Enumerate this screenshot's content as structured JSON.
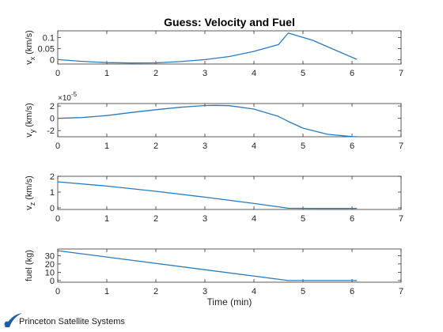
{
  "footer": {
    "brand": "Princeton Satellite Systems"
  },
  "colors": {
    "line": "#2b7bba",
    "axis": "#333333",
    "grid": "#e6e6e6",
    "logo": "#1f5fa0"
  },
  "chart_data": {
    "type": "line",
    "title": "Guess: Velocity and Fuel",
    "xlabel": "Time (min)",
    "xlim": [
      0,
      7
    ],
    "xticks": [
      0,
      1,
      2,
      3,
      4,
      5,
      6,
      7
    ],
    "subplots": [
      {
        "ylabel": "v_x (km/s)",
        "ylabel_main": "v",
        "ylabel_sub": "x",
        "ylabel_tail": " (km/s)",
        "ylim": [
          -0.02,
          0.13
        ],
        "yticks": [
          0,
          0.05,
          0.1
        ],
        "ytick_labels": [
          "0",
          "0.05",
          "0.1"
        ],
        "series": [
          {
            "x": [
              0,
              0.5,
              1,
              1.5,
              2,
              2.5,
              3,
              3.5,
              4,
              4.5,
              4.7,
              5.2,
              5.7,
              6.1
            ],
            "y": [
              0,
              -0.008,
              -0.0135,
              -0.0155,
              -0.0145,
              -0.009,
              0.0,
              0.014,
              0.037,
              0.068,
              0.12,
              0.087,
              0.039,
              0.001
            ]
          }
        ]
      },
      {
        "ylabel": "v_y (km/s)",
        "ylabel_main": "v",
        "ylabel_sub": "y",
        "ylabel_tail": " (km/s)",
        "exponent_label": "×10",
        "exponent_power": "-5",
        "ylim": [
          -3,
          2.4
        ],
        "yticks": [
          -2,
          0,
          2
        ],
        "ytick_labels": [
          "-2",
          "0",
          "2"
        ],
        "series": [
          {
            "x": [
              0,
              0.5,
              1,
              1.5,
              2,
              2.5,
              3,
              3.2,
              3.5,
              4,
              4.5,
              4.7,
              5,
              5.5,
              6,
              6.1
            ],
            "y": [
              0,
              0.12,
              0.45,
              0.95,
              1.4,
              1.8,
              2.08,
              2.1,
              2.05,
              1.5,
              0.3,
              -0.5,
              -1.6,
              -2.6,
              -2.98,
              -3.0
            ]
          }
        ]
      },
      {
        "ylabel": "v_z (km/s)",
        "ylabel_main": "v",
        "ylabel_sub": "z",
        "ylabel_tail": " (km/s)",
        "ylim": [
          -0.1,
          2
        ],
        "yticks": [
          0,
          1,
          2
        ],
        "ytick_labels": [
          "0",
          "1",
          "2"
        ],
        "series": [
          {
            "x": [
              0,
              1,
              2,
              3,
              4,
              4.7,
              5.2,
              6.1
            ],
            "y": [
              1.65,
              1.38,
              1.05,
              0.68,
              0.28,
              -0.02,
              -0.03,
              -0.03
            ]
          }
        ]
      },
      {
        "ylabel": "fuel (kg)",
        "ylim": [
          -2,
          38
        ],
        "yticks": [
          0,
          10,
          20,
          30
        ],
        "ytick_labels": [
          "0",
          "10",
          "20",
          "30"
        ],
        "series": [
          {
            "x": [
              0,
              4.7,
              6.1
            ],
            "y": [
              36,
              0,
              0
            ]
          }
        ]
      }
    ]
  }
}
